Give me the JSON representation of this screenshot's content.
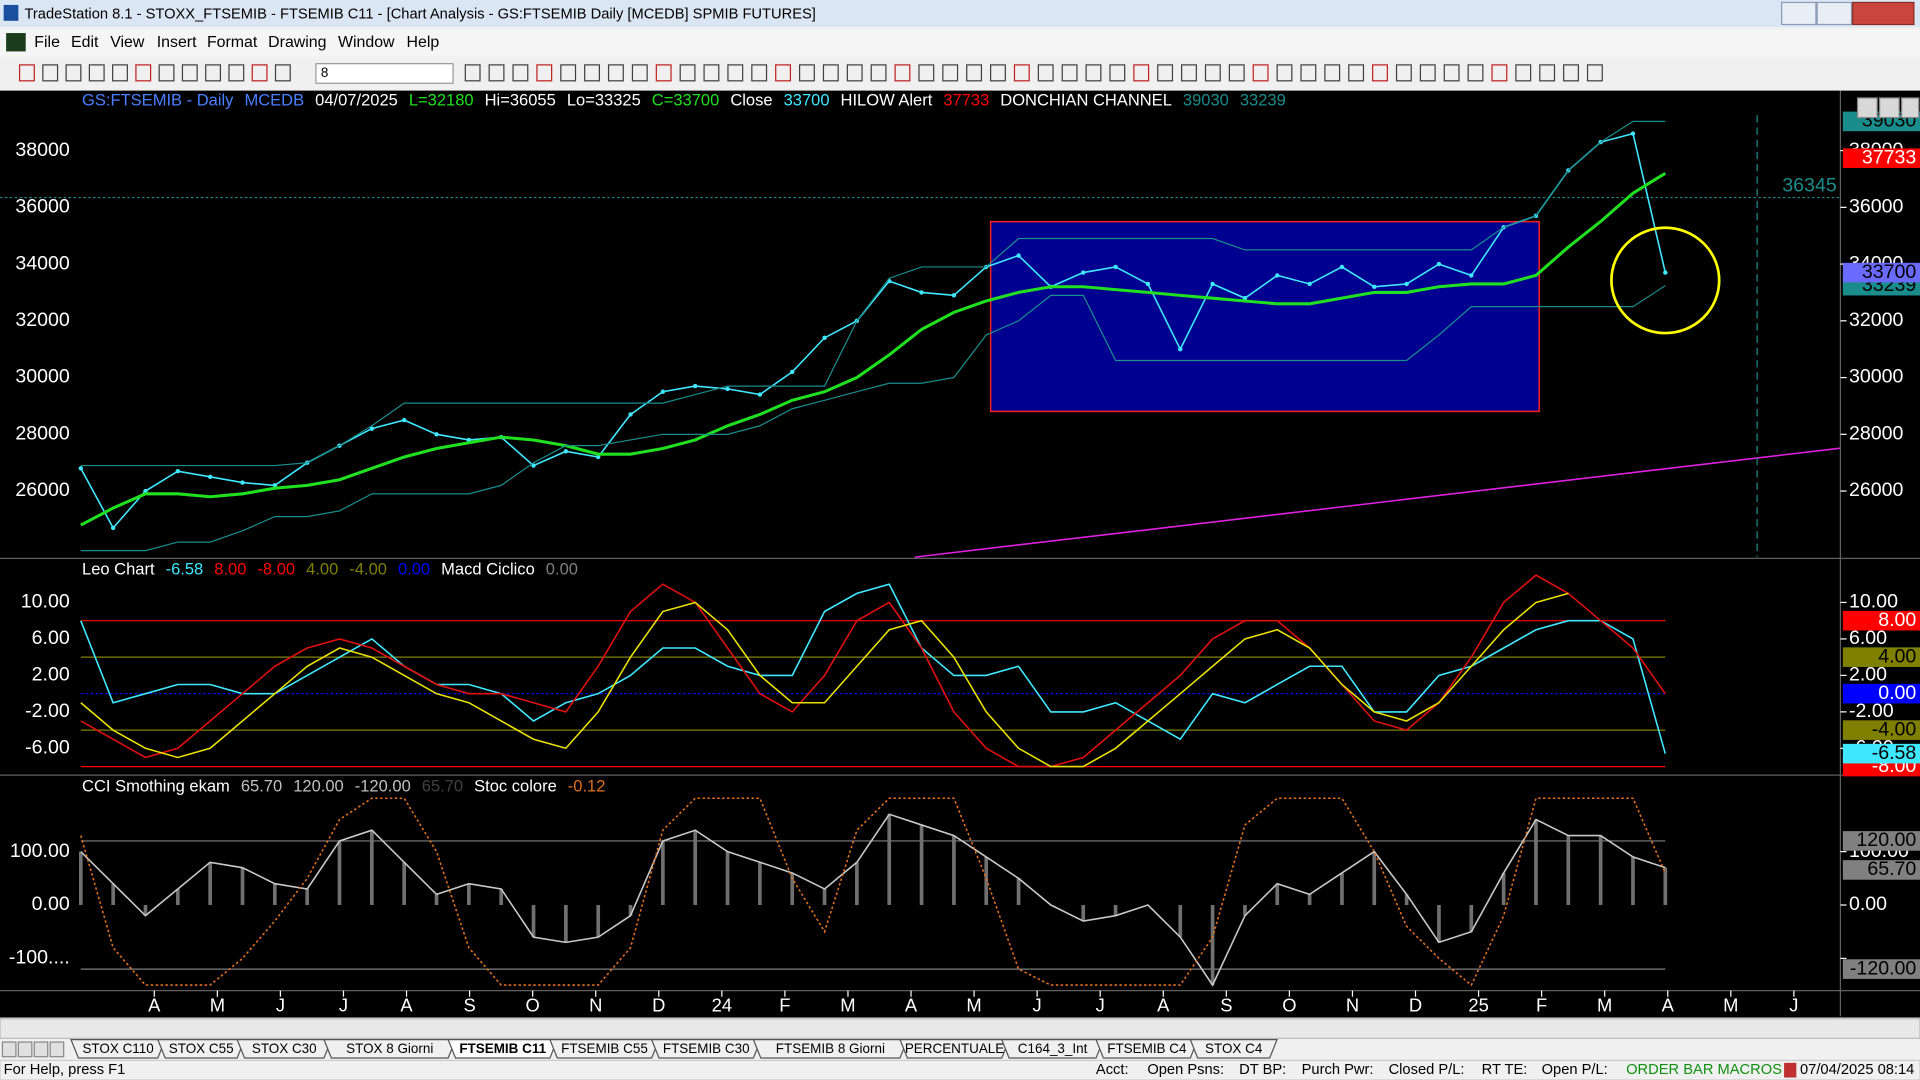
{
  "window": {
    "title": "TradeStation 8.1 - STOXX_FTSEMIB - FTSEMIB C11 - [Chart Analysis - GS:FTSEMIB  Daily  [MCEDB] SPMIB FUTURES]",
    "menu": [
      "File",
      "Edit",
      "View",
      "Insert",
      "Format",
      "Drawing",
      "Window",
      "Help"
    ],
    "combo": "8"
  },
  "chart_data": [
    {
      "type": "line",
      "header": [
        "GS:FTSEMIB - Daily",
        "MCEDB",
        "04/07/2025",
        "L=32180",
        "Hi=36055",
        "Lo=33325",
        "C=33700",
        "Close",
        "33700",
        "HILOW Alert",
        "37733",
        "DONCHIAN CHANNEL",
        "39030",
        "33239"
      ],
      "header_colors": [
        "#4a7fff",
        "#4a7fff",
        "#ffffff",
        "#20e020",
        "#ffffff",
        "#ffffff",
        "#20e020",
        "#ffffff",
        "#40e8ff",
        "#ffffff",
        "#ff0000",
        "#ffffff",
        "#1b8c8c",
        "#1b8c8c"
      ],
      "ylim": [
        23670,
        40115
      ],
      "yticks": [
        26000,
        28000,
        30000,
        32000,
        34000,
        36000,
        38000
      ],
      "series": [
        {
          "color": "#40e8ff",
          "values": [
            26800,
            24700,
            26000,
            26700,
            26500,
            26300,
            26200,
            27000,
            27600,
            28200,
            28500,
            28000,
            27800,
            27900,
            26900,
            27400,
            27200,
            28700,
            29500,
            29700,
            29600,
            29400,
            30200,
            31400,
            32000,
            33400,
            33000,
            32900,
            33900,
            34300,
            33200,
            33700,
            33900,
            33300,
            31000,
            33300,
            32800,
            33600,
            33300,
            33900,
            33200,
            33300,
            34000,
            33600,
            35300,
            35700,
            37300,
            38300,
            38600,
            33700
          ]
        },
        {
          "color": "#20e020",
          "values": [
            24800,
            25400,
            25900,
            25900,
            25800,
            25900,
            26100,
            26200,
            26400,
            26800,
            27200,
            27500,
            27700,
            27900,
            27800,
            27600,
            27300,
            27300,
            27500,
            27800,
            28300,
            28700,
            29200,
            29500,
            30000,
            30800,
            31700,
            32300,
            32700,
            33000,
            33200,
            33200,
            33100,
            33000,
            32900,
            32800,
            32700,
            32600,
            32600,
            32800,
            33000,
            33000,
            33200,
            33300,
            33300,
            33600,
            34600,
            35500,
            36500,
            37200
          ]
        },
        {
          "color": "#1b8c8c",
          "values": [
            26900,
            26900,
            26900,
            26900,
            26900,
            26900,
            26900,
            27000,
            27600,
            28300,
            29100,
            29100,
            29100,
            29100,
            29100,
            29100,
            29100,
            29100,
            29100,
            29400,
            29700,
            29700,
            29700,
            29700,
            32000,
            33500,
            33900,
            33900,
            33900,
            34900,
            34900,
            34900,
            34900,
            34900,
            34900,
            34900,
            34500,
            34500,
            34500,
            34500,
            34500,
            34500,
            34500,
            34500,
            35300,
            35700,
            37300,
            38300,
            39030,
            39030
          ]
        },
        {
          "color": "#1b8c8c",
          "values": [
            23900,
            23900,
            23900,
            24200,
            24200,
            24600,
            25100,
            25100,
            25300,
            25900,
            25900,
            25900,
            25900,
            26200,
            27000,
            27600,
            27600,
            27800,
            28000,
            28000,
            28000,
            28300,
            28900,
            29200,
            29500,
            29800,
            29800,
            30000,
            31500,
            32000,
            32900,
            32900,
            30600,
            30600,
            30600,
            30600,
            30600,
            30600,
            30600,
            30600,
            30600,
            30600,
            31500,
            32500,
            32500,
            32500,
            32500,
            32500,
            32500,
            33239
          ]
        }
      ],
      "level_line": {
        "value": 36345,
        "color": "#1b8c8c"
      },
      "value_boxes": [
        {
          "value": 39030,
          "color": "#1b8c8c"
        },
        {
          "value": 37733,
          "color": "#ff0000"
        },
        {
          "value": 33239,
          "color": "#1b8c8c"
        },
        {
          "value": 33700,
          "color": "#6a6aff"
        }
      ]
    },
    {
      "type": "line",
      "header": [
        "Leo Chart",
        "-6.58",
        "8.00",
        "-8.00",
        "4.00",
        "-4.00",
        "0.00",
        "Macd Ciclico",
        "0.00"
      ],
      "header_colors": [
        "#ffffff",
        "#40e8ff",
        "#ff0000",
        "#ff0000",
        "#808000",
        "#808000",
        "#0000ff",
        "#ffffff",
        "#808080"
      ],
      "ylim": [
        -8.8,
        14.7
      ],
      "yticks": [
        {
          "value": -6,
          "label": "-6.00"
        },
        {
          "value": -2,
          "label": "-2.00"
        },
        {
          "value": 2,
          "label": "2.00"
        },
        {
          "value": 6,
          "label": "6.00"
        },
        {
          "value": 10,
          "label": "10.00"
        }
      ],
      "levels": [
        {
          "value": 8,
          "label": "8.00",
          "color": "#ff0000"
        },
        {
          "value": 4,
          "label": "4.00",
          "color": "#808000"
        },
        {
          "value": 0,
          "label": "0.00",
          "color": "#0000ff"
        },
        {
          "value": -4,
          "label": "-4.00",
          "color": "#808000"
        },
        {
          "value": -8,
          "label": "-8.00",
          "color": "#ff0000"
        }
      ],
      "series": [
        {
          "color": "#40e8ff",
          "values": [
            8,
            -1,
            0,
            1,
            1,
            0,
            0,
            2,
            4,
            6,
            3,
            1,
            1,
            0,
            -3,
            -1,
            0,
            2,
            5,
            5,
            3,
            2,
            2,
            9,
            11,
            12,
            5,
            2,
            2,
            3,
            -2,
            -2,
            -1,
            -3,
            -5,
            0,
            -1,
            1,
            3,
            3,
            -2,
            -2,
            2,
            3,
            5,
            7,
            8,
            8,
            6,
            -6.58
          ]
        },
        {
          "color": "#e01010",
          "values": [
            -3,
            -5,
            -7,
            -6,
            -3,
            0,
            3,
            5,
            6,
            5,
            3,
            1,
            0,
            0,
            -1,
            -2,
            3,
            9,
            12,
            10,
            5,
            0,
            -2,
            2,
            8,
            10,
            5,
            -2,
            -6,
            -8,
            -8,
            -7,
            -4,
            -1,
            2,
            6,
            8,
            8,
            5,
            1,
            -3,
            -4,
            -1,
            4,
            10,
            13,
            11,
            8,
            5,
            0
          ]
        },
        {
          "color": "#e8e000",
          "values": [
            -1,
            -4,
            -6,
            -7,
            -6,
            -3,
            0,
            3,
            5,
            4,
            2,
            0,
            -1,
            -3,
            -5,
            -6,
            -2,
            4,
            9,
            10,
            7,
            2,
            -1,
            -1,
            3,
            7,
            8,
            4,
            -2,
            -6,
            -8,
            -8,
            -6,
            -3,
            0,
            3,
            6,
            7,
            5,
            1,
            -2,
            -3,
            -1,
            3,
            7,
            10,
            11,
            null,
            null,
            null
          ]
        }
      ],
      "value_boxes": [
        {
          "value": -6.58,
          "color": "#40e8ff"
        }
      ]
    },
    {
      "type": "line",
      "header": [
        "CCI Smothing ekam",
        "65.70",
        "120.00",
        "-120.00",
        "65.70",
        "Stoc colore",
        "-0.12"
      ],
      "header_colors": [
        "#ffffff",
        "#c0c0c0",
        "#c0c0c0",
        "#c0c0c0",
        "#404040",
        "#ffffff",
        "#e07020"
      ],
      "ylim": [
        -158,
        241
      ],
      "yticks": [
        {
          "value": -100,
          "label": "-100...."
        },
        {
          "value": 0,
          "label": "0.00"
        },
        {
          "value": 100,
          "label": "100.00"
        }
      ],
      "levels": [
        {
          "value": 120,
          "label": "120.00",
          "color": "#808080"
        },
        {
          "value": -120,
          "label": "-120.00",
          "color": "#808080"
        }
      ],
      "series": [
        {
          "color": "#c8c8c8",
          "histogram": true,
          "values": [
            100,
            40,
            -20,
            30,
            80,
            70,
            40,
            30,
            120,
            140,
            80,
            20,
            40,
            30,
            -60,
            -70,
            -60,
            -20,
            120,
            140,
            100,
            80,
            60,
            30,
            80,
            170,
            150,
            130,
            90,
            50,
            0,
            -30,
            -20,
            0,
            -60,
            -150,
            -20,
            40,
            20,
            60,
            100,
            20,
            -70,
            -50,
            60,
            160,
            130,
            130,
            90,
            70
          ]
        },
        {
          "color": "#e07020",
          "dash": "2 2",
          "values": [
            130,
            -80,
            -150,
            -150,
            -150,
            -100,
            -30,
            50,
            160,
            200,
            200,
            100,
            -80,
            -150,
            -150,
            -150,
            -150,
            -80,
            140,
            200,
            200,
            200,
            50,
            -50,
            140,
            200,
            200,
            200,
            50,
            -120,
            -150,
            -150,
            -150,
            -150,
            -150,
            -60,
            150,
            200,
            200,
            200,
            100,
            -40,
            -100,
            -150,
            -20,
            200,
            200,
            200,
            200,
            60
          ]
        }
      ],
      "value_boxes": [
        {
          "value": 65.7,
          "label": "65.70",
          "color": "#808080"
        }
      ]
    }
  ],
  "time_axis": {
    "labels": [
      "A",
      "M",
      "J",
      "J",
      "A",
      "S",
      "O",
      "N",
      "D",
      "24",
      "F",
      "M",
      "A",
      "M",
      "J",
      "J",
      "A",
      "S",
      "O",
      "N",
      "D",
      "25",
      "F",
      "M",
      "A",
      "M",
      "J"
    ]
  },
  "tabs": [
    "STOX C110",
    "STOX C55",
    "STOX  C30",
    "STOX  8 Giorni",
    "FTSEMIB C11",
    "FTSEMIB C55",
    "FTSEMIB C30",
    "FTSEMIB  8 Giorni",
    "PERCENTUALE",
    "C164_3_Int",
    "FTSEMIB C4",
    "STOX  C4"
  ],
  "active_tab": 4,
  "status": {
    "help": "For Help, press F1",
    "fields": [
      "Acct:",
      "Open Psns:",
      "DT BP:",
      "Purch Pwr:",
      "Closed P/L:",
      "RT TE:",
      "Open P/L:"
    ],
    "macros": "ORDER BAR MACROS",
    "datetime": "07/04/2025 08:14"
  }
}
